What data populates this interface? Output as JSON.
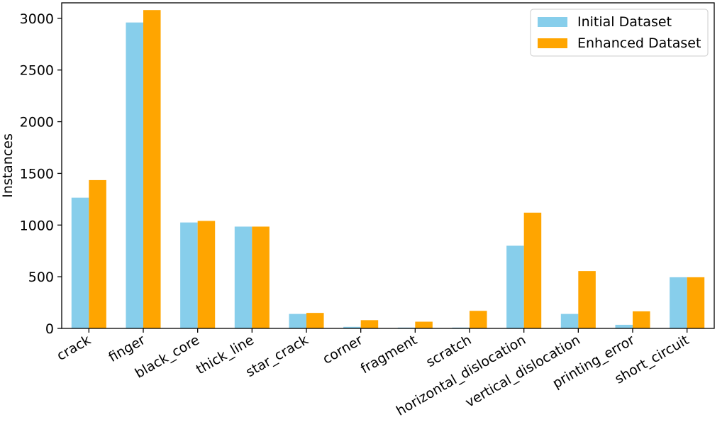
{
  "chart_data": {
    "type": "bar",
    "title": "",
    "xlabel": "",
    "ylabel": "Instances",
    "ylim": [
      0,
      3150
    ],
    "yticks": [
      0,
      500,
      1000,
      1500,
      2000,
      2500,
      3000
    ],
    "categories": [
      "crack",
      "finger",
      "black_core",
      "thick_line",
      "star_crack",
      "corner",
      "fragment",
      "scratch",
      "horizontal_dislocation",
      "vertical_dislocation",
      "printing_error",
      "short_circuit"
    ],
    "series": [
      {
        "name": "Initial Dataset",
        "color": "#87ceeb",
        "values": [
          1265,
          2960,
          1025,
          985,
          140,
          15,
          8,
          8,
          800,
          140,
          35,
          495
        ]
      },
      {
        "name": "Enhanced Dataset",
        "color": "#ffa500",
        "values": [
          1435,
          3080,
          1040,
          985,
          150,
          80,
          65,
          170,
          1120,
          555,
          165,
          495
        ]
      }
    ],
    "legend_position": "top-right",
    "grid": false
  }
}
